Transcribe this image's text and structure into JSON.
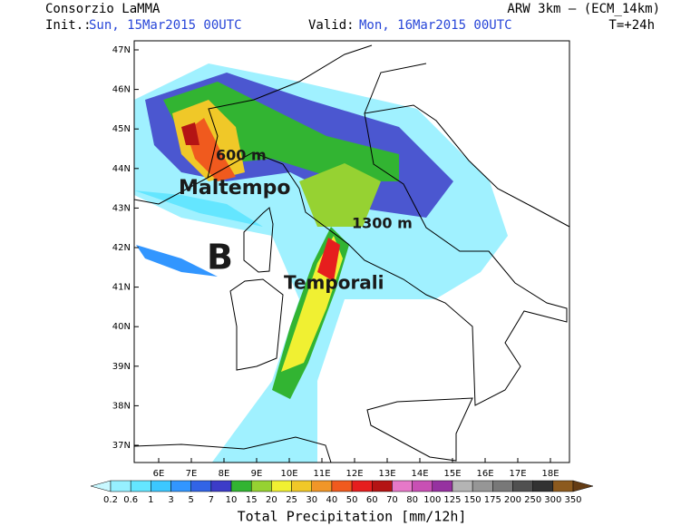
{
  "header": {
    "title": "Consorzio LaMMA",
    "model": "ARW 3km – (ECM_14km)",
    "init_label": "Init.:",
    "init": "Sun, 15Mar2015 00UTC",
    "valid_label": "Valid:",
    "valid": "Mon, 16Mar2015 00UTC",
    "lead": "T=+24h"
  },
  "map": {
    "lat_labels": [
      "47N",
      "46N",
      "45N",
      "44N",
      "43N",
      "42N",
      "41N",
      "40N",
      "39N",
      "38N",
      "37N"
    ],
    "lon_labels": [
      "6E",
      "7E",
      "8E",
      "9E",
      "10E",
      "11E",
      "12E",
      "13E",
      "14E",
      "15E",
      "16E",
      "17E",
      "18E"
    ],
    "annotations": [
      "600 m",
      "Maltempo",
      "1300 m",
      "B",
      "Temporali"
    ]
  },
  "legend": {
    "title": "Total Precipitation [mm/12h]",
    "labels": [
      "0.2",
      "0.6",
      "1",
      "3",
      "5",
      "7",
      "10",
      "15",
      "20",
      "25",
      "30",
      "40",
      "50",
      "60",
      "70",
      "80",
      "100",
      "125",
      "150",
      "175",
      "200",
      "250",
      "300",
      "350"
    ],
    "colors": [
      "#c8f8ff",
      "#96f0ff",
      "#64e6ff",
      "#3cc8ff",
      "#3296ff",
      "#3264e6",
      "#3c3cc8",
      "#32b432",
      "#96d232",
      "#f0f032",
      "#f0c828",
      "#f09628",
      "#f05a1e",
      "#e61e1e",
      "#b41414",
      "#e678c8",
      "#c850b4",
      "#9632a0",
      "#b4b4b4",
      "#969696",
      "#787878",
      "#505050",
      "#323232",
      "#8c5a1e",
      "#643c14"
    ]
  }
}
